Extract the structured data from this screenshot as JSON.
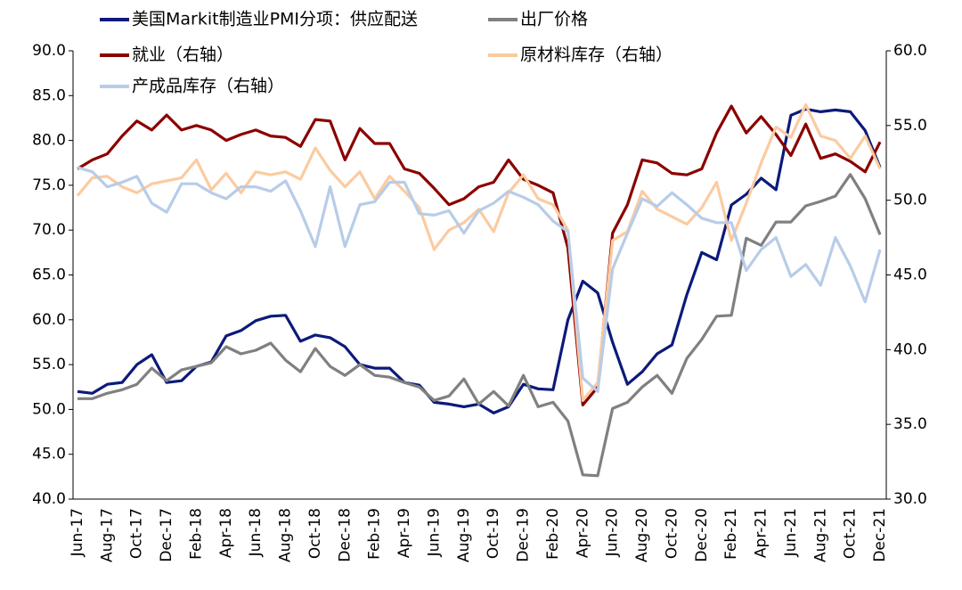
{
  "chart_data": {
    "type": "line",
    "categories": [
      "Jun-17",
      null,
      "Aug-17",
      null,
      "Oct-17",
      null,
      "Dec-17",
      null,
      "Feb-18",
      null,
      "Apr-18",
      null,
      "Jun-18",
      null,
      "Aug-18",
      null,
      "Oct-18",
      null,
      "Dec-18",
      null,
      "Feb-19",
      null,
      "Apr-19",
      null,
      "Jun-19",
      null,
      "Aug-19",
      null,
      "Oct-19",
      null,
      "Dec-19",
      null,
      "Feb-20",
      null,
      "Apr-20",
      null,
      "Jun-20",
      null,
      "Aug-20",
      null,
      "Oct-20",
      null,
      "Dec-20",
      null,
      "Feb-21",
      null,
      "Apr-21",
      null,
      "Jun-21",
      null,
      "Aug-21",
      null,
      "Oct-21",
      null,
      "Dec-21"
    ],
    "ylim": [
      40,
      90
    ],
    "yticks": [
      {
        "value": 40,
        "label": "40.0"
      },
      {
        "value": 45,
        "label": "45.0"
      },
      {
        "value": 50,
        "label": "50.0"
      },
      {
        "value": 55,
        "label": "55.0"
      },
      {
        "value": 60,
        "label": "60.0"
      },
      {
        "value": 65,
        "label": "65.0"
      },
      {
        "value": 70,
        "label": "70.0"
      },
      {
        "value": 75,
        "label": "75.0"
      },
      {
        "value": 80,
        "label": "80.0"
      },
      {
        "value": 85,
        "label": "85.0"
      },
      {
        "value": 90,
        "label": "90.0"
      }
    ],
    "y2lim": [
      30,
      60
    ],
    "y2ticks": [
      {
        "value": 30,
        "label": "30.0"
      },
      {
        "value": 35,
        "label": "35.0"
      },
      {
        "value": 40,
        "label": "40.0"
      },
      {
        "value": 45,
        "label": "45.0"
      },
      {
        "value": 50,
        "label": "50.0"
      },
      {
        "value": 55,
        "label": "55.0"
      },
      {
        "value": 60,
        "label": "60.0"
      }
    ],
    "grid": false,
    "series": [
      {
        "name": "美国Markit制造业PMI分项：供应配送",
        "color": "#0c1a7a",
        "axis": "y",
        "values": [
          52,
          51.8,
          52.8,
          53,
          55,
          56.1,
          53,
          53.2,
          54.8,
          55.3,
          58.2,
          58.8,
          59.9,
          60.4,
          60.5,
          57.6,
          58.3,
          58,
          57,
          55,
          54.6,
          54.6,
          53,
          52.7,
          50.8,
          50.6,
          50.3,
          50.6,
          49.6,
          50.3,
          52.8,
          52.3,
          52.2,
          60,
          64.3,
          63,
          57.5,
          52.8,
          54.2,
          56.2,
          57.2,
          62.8,
          67.5,
          66.7,
          72.8,
          74,
          75.8,
          74.5,
          82.8,
          83.5,
          83.2,
          83.4,
          83.2,
          81.1,
          77
        ]
      },
      {
        "name": "出厂价格",
        "color": "#808080",
        "axis": "y",
        "values": [
          51.2,
          51.2,
          51.8,
          52.2,
          52.8,
          54.6,
          53.2,
          54.4,
          54.8,
          55.2,
          57,
          56.2,
          56.6,
          57.4,
          55.5,
          54.2,
          56.8,
          54.8,
          53.8,
          55,
          53.8,
          53.6,
          53,
          52.5,
          51,
          51.5,
          53.4,
          50.6,
          52,
          50.4,
          53.8,
          50.3,
          50.8,
          48.7,
          42.7,
          42.6,
          50.1,
          50.8,
          52.5,
          53.8,
          51.8,
          55.7,
          57.8,
          60.4,
          60.5,
          69.1,
          68.3,
          70.9,
          70.9,
          72.7,
          73.2,
          73.8,
          76.2,
          73.5,
          69.5
        ]
      },
      {
        "name": "就业（右轴）",
        "color": "#8b0000",
        "axis": "y2",
        "values": [
          52.1,
          52.7,
          53.1,
          54.3,
          55.3,
          54.7,
          55.7,
          54.7,
          55.0,
          54.7,
          54.0,
          54.4,
          54.7,
          54.3,
          54.2,
          53.6,
          55.4,
          55.3,
          52.7,
          54.8,
          53.8,
          53.8,
          52.1,
          51.8,
          50.8,
          49.7,
          50.1,
          50.9,
          51.2,
          52.7,
          51.4,
          51.0,
          50.5,
          46.8,
          36.3,
          37.5,
          47.8,
          49.7,
          52.7,
          52.5,
          51.8,
          51.7,
          52.1,
          54.5,
          56.3,
          54.5,
          55.6,
          54.4,
          53.0,
          55.1,
          52.8,
          53.1,
          52.6,
          51.9,
          53.9
        ]
      },
      {
        "name": "原材料库存（右轴）",
        "color": "#fbcba0",
        "axis": "y2",
        "values": [
          50.3,
          51.5,
          51.6,
          50.9,
          50.5,
          51.1,
          51.3,
          51.5,
          52.7,
          50.7,
          51.8,
          50.5,
          51.9,
          51.7,
          51.9,
          51.4,
          53.5,
          52.0,
          50.9,
          51.9,
          50.1,
          51.6,
          50.6,
          49.5,
          46.7,
          48.0,
          48.5,
          49.4,
          47.9,
          50.5,
          51.7,
          50.1,
          49.7,
          48.0,
          36.6,
          37.8,
          47.3,
          47.9,
          50.6,
          49.4,
          48.9,
          48.4,
          49.5,
          51.2,
          47.3,
          49.8,
          52.5,
          54.9,
          54.2,
          56.4,
          54.3,
          54.0,
          52.8,
          54.3,
          52.1
        ]
      },
      {
        "name": "产成品库存（右轴）",
        "color": "#b8cce8",
        "axis": "y2",
        "values": [
          52.2,
          51.9,
          50.9,
          51.2,
          51.6,
          49.8,
          49.2,
          51.1,
          51.1,
          50.5,
          50.1,
          50.9,
          50.9,
          50.6,
          51.3,
          49.3,
          46.9,
          50.9,
          46.9,
          49.7,
          49.9,
          51.2,
          51.2,
          49.1,
          49.0,
          49.3,
          47.8,
          49.3,
          49.8,
          50.6,
          50.2,
          49.7,
          48.6,
          47.9,
          38.1,
          37.2,
          45.4,
          47.8,
          50.1,
          49.6,
          50.5,
          49.7,
          48.8,
          48.5,
          48.5,
          45.3,
          46.7,
          47.5,
          44.9,
          45.7,
          44.3,
          47.5,
          45.6,
          43.2,
          46.7
        ]
      }
    ]
  }
}
